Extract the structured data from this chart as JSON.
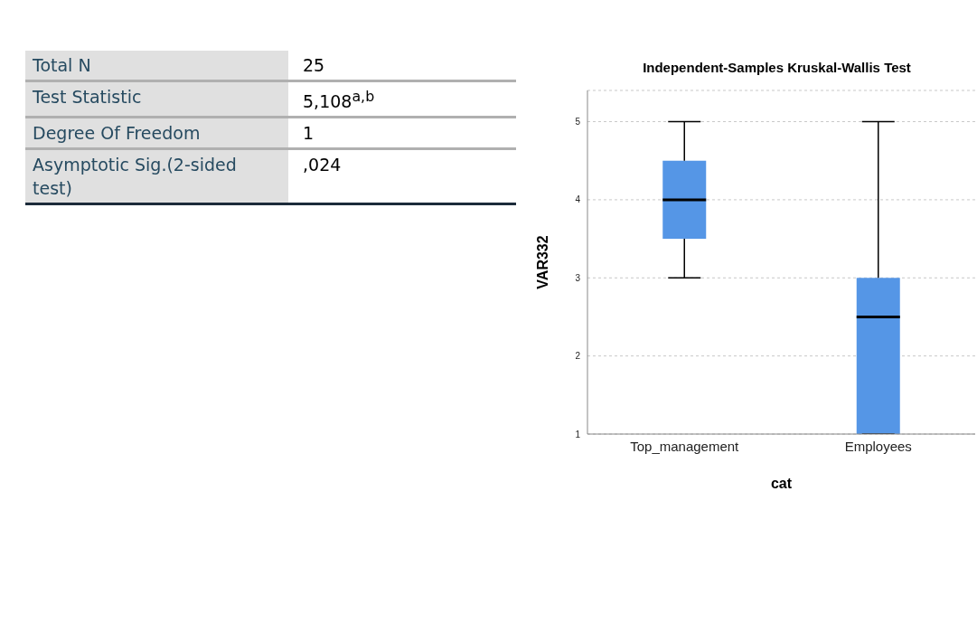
{
  "chart_data": [
    {
      "type": "other",
      "annotations": [
        "Total N",
        "25",
        "Test Statistic",
        "5,108$^{a,b}$",
        "Degree Of Freedom",
        "1",
        "Asymptotic Sig.(2-sided test)",
        ",024"
      ]
    },
    {
      "type": "box",
      "title": "Independent-Samples Kruskal-Wallis Test",
      "xlabel": "cat",
      "ylabel": "VAR332",
      "categories": [
        "Top_management",
        "Employees"
      ],
      "color": "#5596e6",
      "boxes": [
        {
          "low": 3,
          "q1": 3.5,
          "median": 4,
          "q3": 4.5,
          "high": 5
        },
        {
          "low": 1,
          "q1": 1,
          "median": 2.5,
          "q3": 3,
          "high": 5
        }
      ],
      "ylim": [
        1,
        5.4
      ],
      "yticks": [
        1,
        2,
        3,
        4,
        5
      ],
      "grid": "y"
    }
  ]
}
